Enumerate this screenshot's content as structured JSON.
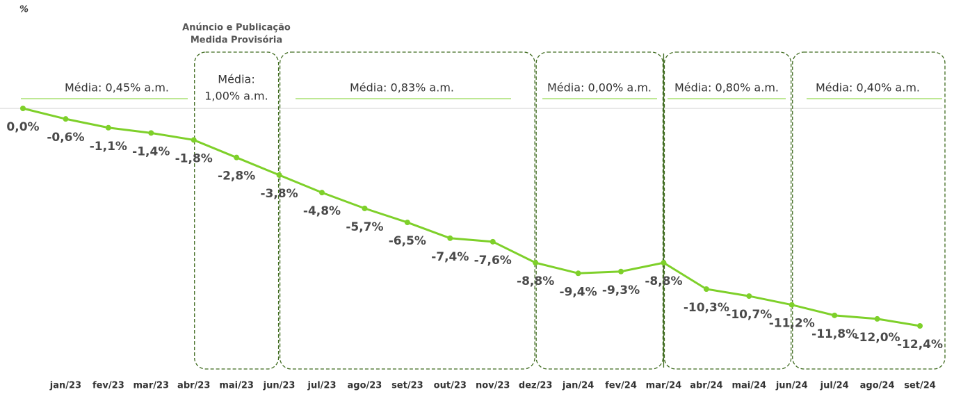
{
  "chart_data": {
    "type": "line",
    "y_label": "%",
    "categories": [
      null,
      "jan/23",
      "fev/23",
      "mar/23",
      "abr/23",
      "mai/23",
      "jun/23",
      "jul/23",
      "ago/23",
      "set/23",
      "out/23",
      "nov/23",
      "dez/23",
      "jan/24",
      "fev/24",
      "mar/24",
      "abr/24",
      "mai/24",
      "jun/24",
      "jul/24",
      "ago/24",
      "set/24"
    ],
    "values": [
      0,
      -0.6,
      -1.1,
      -1.4,
      -1.8,
      -2.8,
      -3.8,
      -4.8,
      -5.7,
      -6.5,
      -7.4,
      -7.6,
      -8.8,
      -9.4,
      -9.3,
      -8.8,
      -10.3,
      -10.7,
      -11.2,
      -11.8,
      -12.0,
      -12.4
    ],
    "value_labels": [
      "0,0%",
      "-0,6%",
      "-1,1%",
      "-1,4%",
      "-1,8%",
      "-2,8%",
      "-3,8%",
      "-4,8%",
      "-5,7%",
      "-6,5%",
      "-7,4%",
      "-7,6%",
      "-8,8%",
      "-9,4%",
      "-9,3%",
      "-8,8%",
      "-10,3%",
      "-10,7%",
      "-11,2%",
      "-11,8%",
      "-12,0%",
      "-12,4%"
    ],
    "color": "#7ed02a",
    "ylim": [
      -12.4,
      0
    ],
    "highlight_title": [
      "Anúncio e Publicação",
      "Medida Provisória"
    ],
    "annotations": [
      {
        "lines": [
          "Média: 0,45% a.m."
        ]
      },
      {
        "lines": [
          "Média:",
          "1,00% a.m."
        ]
      },
      {
        "lines": [
          "Média: 0,83% a.m."
        ]
      },
      {
        "lines": [
          "Média: 0,00% a.m."
        ]
      },
      {
        "lines": [
          "Média: 0,80% a.m."
        ]
      },
      {
        "lines": [
          "Média: 0,40% a.m."
        ]
      }
    ]
  }
}
